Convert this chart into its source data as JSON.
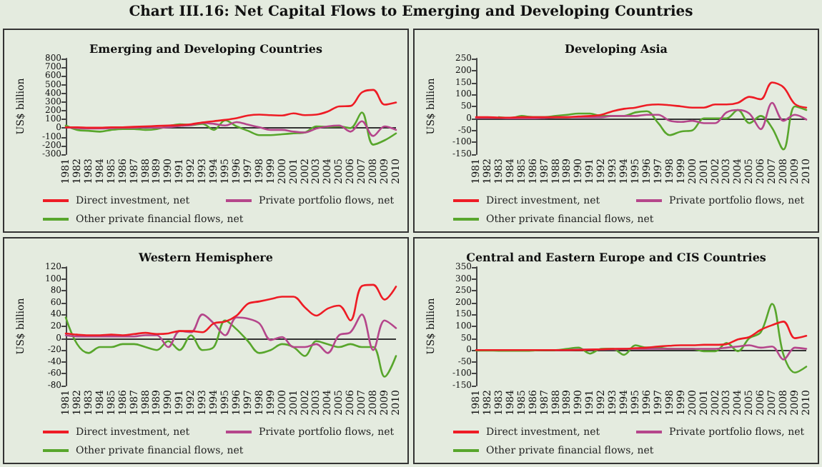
{
  "chart_data": [
    {
      "type": "other",
      "title": "Chart III.16: Net Capital Flows to Emerging and Developing Countries"
    },
    {
      "type": "line",
      "title": "Emerging and Developing Countries",
      "ylabel": "US$ billion",
      "categories": [
        "1981",
        "1982",
        "1983",
        "1984",
        "1985",
        "1986",
        "1987",
        "1988",
        "1989",
        "1990",
        "1991",
        "1992",
        "1993",
        "1994",
        "1995",
        "1996",
        "1997",
        "1998",
        "1999",
        "2000",
        "2001",
        "2002",
        "2003",
        "2004",
        "2005",
        "2006",
        "2007",
        "2008",
        "2009",
        "2010"
      ],
      "ylim": [
        -300,
        800
      ],
      "yticks": [
        -300,
        -200,
        -100,
        0,
        100,
        200,
        300,
        400,
        500,
        600,
        700,
        800
      ],
      "grid": false,
      "legend": "bottom",
      "marker": "none",
      "ref_lines": [
        {
          "axis": "y",
          "value": 0
        }
      ],
      "series": [
        {
          "name": "Direct investment, net",
          "color": "#ee1c25",
          "values": [
            10,
            10,
            5,
            5,
            10,
            10,
            15,
            20,
            25,
            30,
            35,
            45,
            65,
            80,
            95,
            115,
            145,
            155,
            150,
            145,
            170,
            150,
            155,
            190,
            250,
            255,
            410,
            440,
            270,
            295
          ]
        },
        {
          "name": "Private portfolio flows, net",
          "color": "#b5468b",
          "values": [
            10,
            0,
            -5,
            -5,
            0,
            5,
            5,
            10,
            5,
            10,
            25,
            35,
            60,
            50,
            30,
            70,
            40,
            10,
            -20,
            -20,
            -40,
            -50,
            -5,
            20,
            30,
            -40,
            80,
            -90,
            20,
            -20
          ]
        },
        {
          "name": "Other private financial flows, net",
          "color": "#58a62c",
          "values": [
            30,
            -20,
            -30,
            -40,
            -20,
            -10,
            -10,
            -20,
            -10,
            20,
            45,
            35,
            50,
            -20,
            90,
            20,
            -30,
            -80,
            -80,
            -70,
            -60,
            -50,
            20,
            15,
            20,
            0,
            180,
            -190,
            -140,
            -60
          ]
        }
      ]
    },
    {
      "type": "line",
      "title": "Developing Asia",
      "ylabel": "US$ billion",
      "categories": [
        "1981",
        "1982",
        "1983",
        "1984",
        "1985",
        "1986",
        "1987",
        "1988",
        "1989",
        "1990",
        "1991",
        "1992",
        "1993",
        "1994",
        "1995",
        "1996",
        "1997",
        "1998",
        "1999",
        "2000",
        "2001",
        "2002",
        "2003",
        "2004",
        "2005",
        "2006",
        "2007",
        "2008",
        "2009",
        "2010"
      ],
      "ylim": [
        -150,
        250
      ],
      "yticks": [
        -150,
        -100,
        -50,
        0,
        50,
        100,
        150,
        200,
        250
      ],
      "grid": false,
      "legend": "bottom",
      "marker": "none",
      "ref_lines": [
        {
          "axis": "y",
          "value": 0
        }
      ],
      "series": [
        {
          "name": "Direct investment, net",
          "color": "#ee1c25",
          "values": [
            5,
            5,
            3,
            3,
            5,
            5,
            5,
            5,
            5,
            8,
            10,
            15,
            30,
            40,
            45,
            55,
            58,
            55,
            50,
            45,
            45,
            58,
            58,
            65,
            90,
            80,
            150,
            130,
            60,
            45
          ]
        },
        {
          "name": "Private portfolio flows, net",
          "color": "#b5468b",
          "values": [
            2,
            2,
            2,
            0,
            0,
            0,
            2,
            5,
            5,
            5,
            5,
            5,
            10,
            10,
            10,
            15,
            15,
            -10,
            -15,
            -10,
            -20,
            -20,
            25,
            35,
            20,
            -45,
            65,
            -10,
            15,
            -5
          ]
        },
        {
          "name": "Other private financial flows, net",
          "color": "#58a62c",
          "values": [
            null,
            null,
            5,
            0,
            10,
            5,
            5,
            10,
            15,
            20,
            20,
            10,
            10,
            10,
            25,
            30,
            -20,
            -70,
            -55,
            -50,
            0,
            0,
            0,
            35,
            -20,
            10,
            -40,
            -130,
            50,
            35
          ]
        }
      ]
    },
    {
      "type": "line",
      "title": "Western Hemisphere",
      "ylabel": "US$ billion",
      "categories": [
        "1981",
        "1982",
        "1983",
        "1984",
        "1985",
        "1986",
        "1987",
        "1988",
        "1989",
        "1990",
        "1991",
        "1992",
        "1993",
        "1994",
        "1995",
        "1996",
        "1997",
        "1998",
        "1999",
        "2000",
        "2001",
        "2002",
        "2003",
        "2004",
        "2005",
        "2006",
        "2007",
        "2008",
        "2009",
        "2010"
      ],
      "ylim": [
        -80,
        120
      ],
      "yticks": [
        -80,
        -60,
        -40,
        -20,
        0,
        20,
        40,
        60,
        80,
        100,
        120
      ],
      "grid": false,
      "legend": "bottom",
      "marker": "none",
      "ref_lines": [
        {
          "axis": "y",
          "value": 0
        }
      ],
      "series": [
        {
          "name": "Direct investment, net",
          "color": "#ee1c25",
          "values": [
            8,
            6,
            5,
            5,
            6,
            5,
            7,
            9,
            7,
            8,
            12,
            12,
            10,
            25,
            28,
            38,
            58,
            62,
            66,
            70,
            70,
            52,
            38,
            50,
            55,
            30,
            88,
            90,
            65,
            87
          ]
        },
        {
          "name": "Private portfolio flows, net",
          "color": "#b5468b",
          "values": [
            5,
            3,
            3,
            3,
            3,
            3,
            3,
            5,
            5,
            -15,
            12,
            10,
            40,
            25,
            5,
            35,
            33,
            25,
            -3,
            2,
            -15,
            -15,
            -10,
            -25,
            5,
            10,
            40,
            -20,
            30,
            17
          ]
        },
        {
          "name": "Other private financial flows, net",
          "color": "#58a62c",
          "values": [
            35,
            -10,
            -25,
            -15,
            -15,
            -10,
            -10,
            -15,
            -20,
            -5,
            -20,
            5,
            -20,
            -15,
            30,
            15,
            -5,
            -25,
            -20,
            -10,
            -15,
            -30,
            -5,
            -10,
            -15,
            -10,
            -15,
            -15,
            -65,
            -30
          ]
        }
      ]
    },
    {
      "type": "line",
      "title": "Central and Eastern Europe and CIS Countries",
      "ylabel": "US$ billion",
      "categories": [
        "1981",
        "1982",
        "1983",
        "1984",
        "1985",
        "1986",
        "1987",
        "1988",
        "1989",
        "1990",
        "1991",
        "1992",
        "1993",
        "1994",
        "1995",
        "1996",
        "1997",
        "1998",
        "1999",
        "2000",
        "2001",
        "2002",
        "2003",
        "2004",
        "2005",
        "2006",
        "2007",
        "2008",
        "2009",
        "2010"
      ],
      "ylim": [
        -150,
        350
      ],
      "yticks": [
        -150,
        -100,
        -50,
        0,
        50,
        100,
        150,
        200,
        250,
        300,
        350
      ],
      "grid": false,
      "legend": "bottom",
      "marker": "none",
      "ref_lines": [
        {
          "axis": "y",
          "value": 0
        }
      ],
      "series": [
        {
          "name": "Direct investment, net",
          "color": "#ee1c25",
          "values": [
            0,
            0,
            0,
            0,
            0,
            0,
            0,
            0,
            0,
            0,
            2,
            3,
            5,
            5,
            8,
            10,
            15,
            18,
            20,
            20,
            22,
            22,
            25,
            45,
            55,
            85,
            105,
            120,
            50,
            60
          ]
        },
        {
          "name": "Private portfolio flows, net",
          "color": "#b5468b",
          "values": [
            null,
            null,
            null,
            null,
            null,
            null,
            null,
            0,
            0,
            2,
            2,
            3,
            3,
            5,
            5,
            5,
            5,
            5,
            5,
            5,
            5,
            5,
            10,
            15,
            20,
            10,
            15,
            -40,
            10,
            5
          ]
        },
        {
          "name": "Other private financial flows, net",
          "color": "#58a62c",
          "values": [
            -2,
            -2,
            -3,
            -3,
            -3,
            -2,
            0,
            0,
            5,
            10,
            -15,
            5,
            5,
            -20,
            20,
            10,
            10,
            5,
            5,
            5,
            -5,
            -5,
            30,
            -5,
            50,
            75,
            195,
            -20,
            -95,
            -70
          ]
        }
      ]
    }
  ]
}
